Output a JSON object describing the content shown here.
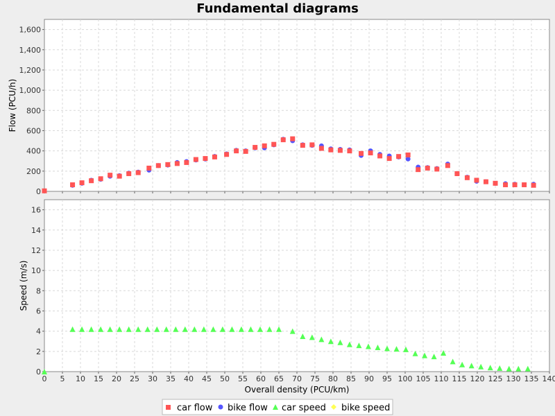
{
  "chart_data": [
    {
      "type": "scatter",
      "title": "Fundamental diagrams",
      "xlabel": "Overall density (PCU/km)",
      "ylabel": "Flow (PCU/h)",
      "xlim": [
        0,
        140
      ],
      "ylim": [
        0,
        1700
      ],
      "yticks": [
        "0",
        "200",
        "400",
        "600",
        "800",
        "1,000",
        "1,200",
        "1,400",
        "1,600"
      ],
      "ytick_values": [
        0,
        200,
        400,
        600,
        800,
        1000,
        1200,
        1400,
        1600
      ],
      "grid": true,
      "series": [
        {
          "name": "car flow",
          "color": "#ff5555",
          "marker": "square",
          "x": [
            0,
            7.8,
            10.4,
            13.0,
            15.6,
            18.2,
            20.8,
            23.4,
            26.0,
            29.0,
            31.6,
            34.2,
            36.8,
            39.4,
            42.0,
            44.6,
            47.2,
            50.5,
            53.2,
            55.8,
            58.4,
            61.0,
            63.6,
            66.2,
            68.8,
            71.6,
            74.2,
            76.8,
            79.4,
            82.0,
            84.6,
            87.8,
            90.4,
            93.0,
            95.6,
            98.2,
            100.8,
            103.6,
            106.2,
            108.8,
            111.8,
            114.4,
            117.2,
            119.8,
            122.4,
            125.0,
            127.8,
            130.4,
            133.0,
            135.6
          ],
          "y": [
            5,
            65,
            85,
            105,
            125,
            160,
            150,
            175,
            185,
            230,
            255,
            265,
            275,
            285,
            315,
            325,
            340,
            365,
            400,
            395,
            435,
            450,
            465,
            510,
            520,
            455,
            460,
            425,
            410,
            405,
            400,
            375,
            380,
            350,
            325,
            345,
            360,
            215,
            230,
            220,
            255,
            175,
            135,
            110,
            95,
            80,
            65,
            65,
            65,
            60
          ]
        },
        {
          "name": "bike flow",
          "color": "#5555ff",
          "marker": "circle",
          "x": [
            7.8,
            10.4,
            13.0,
            15.6,
            18.2,
            20.8,
            23.4,
            26.0,
            29.0,
            31.6,
            34.2,
            36.8,
            39.4,
            42.0,
            44.6,
            47.2,
            50.5,
            53.2,
            55.8,
            58.4,
            61.0,
            63.6,
            66.2,
            68.8,
            71.6,
            74.2,
            76.8,
            79.4,
            82.0,
            84.6,
            87.8,
            90.4,
            93.0,
            95.6,
            98.2,
            100.8,
            103.6,
            106.2,
            108.8,
            111.8,
            114.4,
            117.2,
            119.8,
            122.4,
            125.0,
            127.8,
            130.4,
            133.0,
            135.6
          ],
          "y": [
            60,
            80,
            110,
            120,
            150,
            155,
            180,
            190,
            210,
            255,
            260,
            285,
            295,
            310,
            320,
            345,
            370,
            405,
            400,
            430,
            430,
            460,
            515,
            500,
            460,
            455,
            450,
            420,
            415,
            410,
            355,
            400,
            365,
            350,
            340,
            320,
            240,
            235,
            225,
            270,
            175,
            140,
            100,
            95,
            80,
            75,
            70,
            65,
            70
          ]
        },
        {
          "name": "car speed",
          "color": "#55ff55",
          "marker": "triangle",
          "visible": false
        },
        {
          "name": "bike speed",
          "color": "#ffff55",
          "marker": "diamond",
          "visible": false
        }
      ]
    },
    {
      "type": "scatter",
      "xlabel": "Overall density (PCU/km)",
      "ylabel": "Speed (m/s)",
      "xlim": [
        0,
        140
      ],
      "ylim": [
        0,
        17
      ],
      "yticks": [
        "0",
        "2",
        "4",
        "6",
        "8",
        "10",
        "12",
        "14",
        "16"
      ],
      "ytick_values": [
        0,
        2,
        4,
        6,
        8,
        10,
        12,
        14,
        16
      ],
      "xticks": [
        "0",
        "5",
        "10",
        "15",
        "20",
        "25",
        "30",
        "35",
        "40",
        "45",
        "50",
        "55",
        "60",
        "65",
        "70",
        "75",
        "80",
        "85",
        "90",
        "95",
        "100",
        "105",
        "110",
        "115",
        "120",
        "125",
        "130",
        "135",
        "140"
      ],
      "xtick_values": [
        0,
        5,
        10,
        15,
        20,
        25,
        30,
        35,
        40,
        45,
        50,
        55,
        60,
        65,
        70,
        75,
        80,
        85,
        90,
        95,
        100,
        105,
        110,
        115,
        120,
        125,
        130,
        135,
        140
      ],
      "grid": true,
      "series": [
        {
          "name": "car speed",
          "color": "#55ff55",
          "marker": "triangle",
          "x": [
            0,
            7.8,
            10.4,
            13.0,
            15.6,
            18.2,
            20.8,
            23.4,
            26.0,
            28.6,
            31.2,
            33.8,
            36.4,
            39.0,
            41.6,
            44.2,
            46.8,
            49.4,
            52.0,
            54.6,
            57.2,
            59.8,
            62.4,
            65.0,
            68.8,
            71.6,
            74.2,
            76.8,
            79.4,
            82.0,
            84.6,
            87.2,
            89.8,
            92.4,
            95.0,
            97.6,
            100.2,
            102.8,
            105.4,
            108.0,
            110.6,
            113.2,
            115.8,
            118.4,
            121.0,
            123.6,
            126.2,
            128.8,
            131.4,
            134.0
          ],
          "y": [
            0,
            4.2,
            4.2,
            4.2,
            4.2,
            4.2,
            4.2,
            4.2,
            4.2,
            4.2,
            4.2,
            4.2,
            4.2,
            4.2,
            4.2,
            4.2,
            4.2,
            4.2,
            4.2,
            4.2,
            4.2,
            4.2,
            4.2,
            4.2,
            4.0,
            3.5,
            3.4,
            3.2,
            3.0,
            2.9,
            2.7,
            2.6,
            2.5,
            2.4,
            2.3,
            2.25,
            2.2,
            1.8,
            1.6,
            1.5,
            1.85,
            1.0,
            0.7,
            0.6,
            0.5,
            0.4,
            0.35,
            0.3,
            0.3,
            0.3
          ]
        }
      ]
    }
  ]
}
